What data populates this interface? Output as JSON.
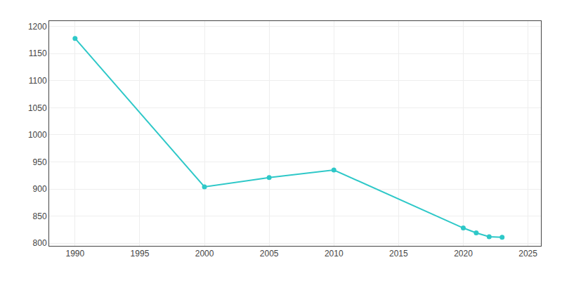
{
  "chart_data": {
    "type": "line",
    "x": [
      1990,
      2000,
      2005,
      2010,
      2020,
      2021,
      2022,
      2023
    ],
    "values": [
      1178,
      904,
      921,
      935,
      828,
      819,
      812,
      811
    ],
    "color": "#2ec8c8",
    "marker": "circle",
    "xlim": [
      1988,
      2026
    ],
    "ylim": [
      795,
      1210
    ],
    "xticks": [
      1990,
      1995,
      2000,
      2005,
      2010,
      2015,
      2020,
      2025
    ],
    "yticks": [
      800,
      850,
      900,
      950,
      1000,
      1050,
      1100,
      1150,
      1200
    ],
    "grid": true
  }
}
